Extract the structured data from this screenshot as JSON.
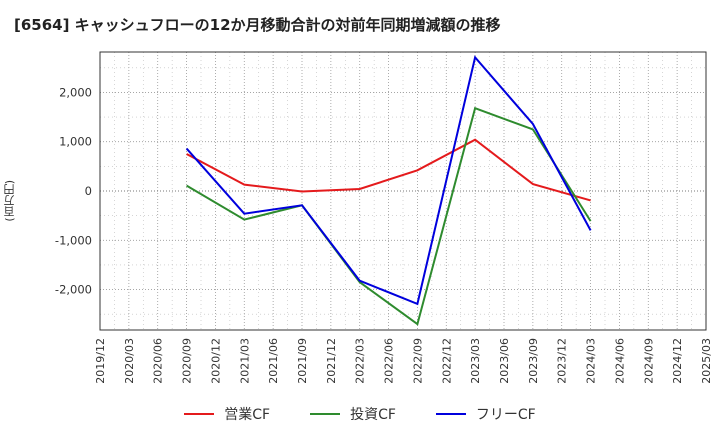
{
  "chart_data": {
    "type": "line",
    "title": "[6564]  キャッシュフローの12か月移動合計の対前年同期増減額の推移",
    "ylabel": "(百万円)",
    "xlabel": "",
    "categories": [
      "2019/12",
      "2020/03",
      "2020/06",
      "2020/09",
      "2020/12",
      "2021/03",
      "2021/06",
      "2021/09",
      "2021/12",
      "2022/03",
      "2022/06",
      "2022/09",
      "2022/12",
      "2023/03",
      "2023/06",
      "2023/09",
      "2023/12",
      "2024/03",
      "2024/06",
      "2024/09",
      "2024/12",
      "2025/03"
    ],
    "yticks": [
      2000,
      1000,
      0,
      -1000,
      -2000
    ],
    "ytick_labels": [
      "2,000",
      "1,000",
      "0",
      "-1,000",
      "-2,000"
    ],
    "ylim": [
      -2820,
      2820
    ],
    "grid": true,
    "legend_position": "bottom",
    "series": [
      {
        "name": "営業CF",
        "color": "#e41a1c",
        "values": [
          null,
          null,
          null,
          750,
          null,
          130,
          null,
          -10,
          null,
          40,
          null,
          420,
          null,
          1040,
          null,
          140,
          null,
          -190,
          null,
          null,
          null,
          null
        ]
      },
      {
        "name": "投資CF",
        "color": "#2e8b2e",
        "values": [
          null,
          null,
          null,
          110,
          null,
          -580,
          null,
          -290,
          null,
          -1850,
          null,
          -2700,
          null,
          1680,
          null,
          1250,
          null,
          -610,
          null,
          null,
          null,
          null
        ]
      },
      {
        "name": "フリーCF",
        "color": "#0000dd",
        "values": [
          null,
          null,
          null,
          860,
          null,
          -460,
          null,
          -290,
          null,
          -1820,
          null,
          -2290,
          null,
          2710,
          null,
          1360,
          null,
          -800,
          null,
          null,
          null,
          null
        ]
      }
    ]
  }
}
